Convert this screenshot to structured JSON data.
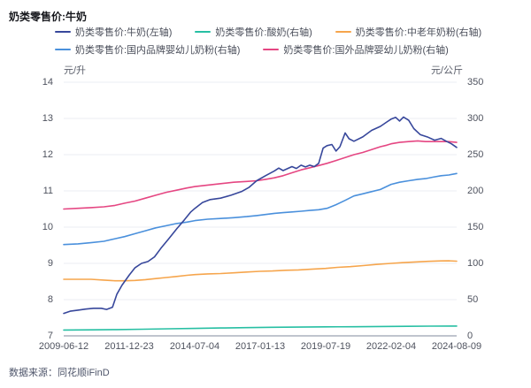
{
  "title": "奶类零售价:牛奶",
  "footer": "数据来源：同花顺iFinD",
  "chart_data": {
    "type": "line",
    "title": "奶类零售价:牛奶",
    "grid": true,
    "legend_position": "top",
    "left_axis": {
      "unit": "元/升",
      "min": 7,
      "max": 14,
      "ticks": [
        14,
        13,
        12,
        11,
        10,
        9,
        8,
        7
      ]
    },
    "right_axis": {
      "unit": "元/公斤",
      "min": 0,
      "max": 350,
      "ticks": [
        350,
        300,
        250,
        200,
        150,
        100,
        50,
        0
      ]
    },
    "x_axis": {
      "tick_labels": [
        "2009-06-12",
        "2011-12-23",
        "2014-07-04",
        "2017-01-13",
        "2019-07-19",
        "2022-02-04",
        "2024-08-09"
      ],
      "min_year": 2009.45,
      "max_year": 2024.6
    },
    "series": [
      {
        "name": "奶类零售价:酸奶(右轴)",
        "axis": "right",
        "color": "#27bfa3",
        "points": [
          [
            2009.45,
            8
          ],
          [
            2010.5,
            8.3
          ],
          [
            2011.5,
            8.7
          ],
          [
            2012.5,
            9.2
          ],
          [
            2013.5,
            9.8
          ],
          [
            2014.51,
            10.3
          ],
          [
            2015.5,
            10.8
          ],
          [
            2016.5,
            11.3
          ],
          [
            2017.5,
            11.8
          ],
          [
            2018.5,
            12.1
          ],
          [
            2019.55,
            12.4
          ],
          [
            2020.64,
            12.6
          ],
          [
            2021.66,
            12.9
          ],
          [
            2022.7,
            13.2
          ],
          [
            2023.6,
            13.4
          ],
          [
            2024.6,
            13.5
          ]
        ]
      },
      {
        "name": "奶类零售价:中老年奶粉(右轴)",
        "axis": "right",
        "color": "#f6a54c",
        "points": [
          [
            2009.45,
            78
          ],
          [
            2010,
            78
          ],
          [
            2010.5,
            78
          ],
          [
            2011,
            77
          ],
          [
            2011.43,
            76
          ],
          [
            2011.8,
            76
          ],
          [
            2012.2,
            76.5
          ],
          [
            2012.6,
            77.5
          ],
          [
            2013,
            79
          ],
          [
            2013.4,
            80.5
          ],
          [
            2013.8,
            82
          ],
          [
            2014.2,
            83.5
          ],
          [
            2014.51,
            84.5
          ],
          [
            2015,
            85.5
          ],
          [
            2015.5,
            86
          ],
          [
            2016,
            87
          ],
          [
            2016.5,
            88
          ],
          [
            2017,
            89
          ],
          [
            2017.5,
            89.5
          ],
          [
            2018,
            90.5
          ],
          [
            2018.5,
            91
          ],
          [
            2019,
            92
          ],
          [
            2019.55,
            93
          ],
          [
            2020,
            94.5
          ],
          [
            2020.5,
            95.5
          ],
          [
            2021,
            97
          ],
          [
            2021.5,
            98.5
          ],
          [
            2022.07,
            100
          ],
          [
            2022.5,
            101
          ],
          [
            2023,
            102
          ],
          [
            2023.5,
            102.8
          ],
          [
            2024,
            103.4
          ],
          [
            2024.3,
            103.5
          ],
          [
            2024.6,
            103
          ]
        ]
      },
      {
        "name": "奶类零售价:国内品牌婴幼儿奶粉(右轴)",
        "axis": "right",
        "color": "#4a90dc",
        "points": [
          [
            2009.45,
            126
          ],
          [
            2010,
            127
          ],
          [
            2010.5,
            128.5
          ],
          [
            2011,
            130.5
          ],
          [
            2011.43,
            134
          ],
          [
            2011.8,
            137
          ],
          [
            2012.2,
            141
          ],
          [
            2012.6,
            145
          ],
          [
            2013,
            149
          ],
          [
            2013.4,
            152
          ],
          [
            2013.8,
            155
          ],
          [
            2014.2,
            157
          ],
          [
            2014.51,
            159
          ],
          [
            2015,
            161
          ],
          [
            2015.5,
            162
          ],
          [
            2016,
            163
          ],
          [
            2016.5,
            164.5
          ],
          [
            2016.89,
            166
          ],
          [
            2017.23,
            167.5
          ],
          [
            2017.57,
            169
          ],
          [
            2017.91,
            170
          ],
          [
            2018.25,
            171
          ],
          [
            2018.6,
            172
          ],
          [
            2018.94,
            173
          ],
          [
            2019.28,
            174
          ],
          [
            2019.6,
            176
          ],
          [
            2019.95,
            181
          ],
          [
            2020.3,
            187
          ],
          [
            2020.64,
            193
          ],
          [
            2020.98,
            196
          ],
          [
            2021.32,
            199
          ],
          [
            2021.66,
            202
          ],
          [
            2022.07,
            209
          ],
          [
            2022.4,
            212
          ],
          [
            2022.75,
            214
          ],
          [
            2023.1,
            216
          ],
          [
            2023.4,
            217
          ],
          [
            2023.7,
            219
          ],
          [
            2024,
            221
          ],
          [
            2024.3,
            222
          ],
          [
            2024.6,
            224
          ]
        ]
      },
      {
        "name": "奶类零售价:国外品牌婴幼儿奶粉(右轴)",
        "axis": "right",
        "color": "#e54682",
        "points": [
          [
            2009.45,
            175
          ],
          [
            2010,
            176
          ],
          [
            2010.5,
            177
          ],
          [
            2011,
            178
          ],
          [
            2011.43,
            180
          ],
          [
            2011.8,
            183
          ],
          [
            2012.2,
            186
          ],
          [
            2012.6,
            190
          ],
          [
            2013,
            194
          ],
          [
            2013.4,
            198
          ],
          [
            2013.8,
            201
          ],
          [
            2014.2,
            204
          ],
          [
            2014.51,
            206
          ],
          [
            2015,
            208
          ],
          [
            2015.5,
            210
          ],
          [
            2016,
            212
          ],
          [
            2016.5,
            213
          ],
          [
            2016.89,
            214
          ],
          [
            2017.23,
            216
          ],
          [
            2017.57,
            218
          ],
          [
            2017.91,
            221
          ],
          [
            2018.25,
            225
          ],
          [
            2018.6,
            229
          ],
          [
            2018.94,
            232
          ],
          [
            2019.28,
            235
          ],
          [
            2019.6,
            238
          ],
          [
            2019.95,
            242
          ],
          [
            2020.3,
            246
          ],
          [
            2020.64,
            250
          ],
          [
            2020.98,
            253
          ],
          [
            2021.32,
            257
          ],
          [
            2021.66,
            261
          ],
          [
            2021.9,
            263
          ],
          [
            2022.07,
            265
          ],
          [
            2022.4,
            267
          ],
          [
            2022.75,
            268
          ],
          [
            2023.1,
            269
          ],
          [
            2023.4,
            268
          ],
          [
            2023.7,
            268
          ],
          [
            2024,
            268
          ],
          [
            2024.3,
            268
          ],
          [
            2024.6,
            267
          ]
        ]
      },
      {
        "name": "奶类零售价:牛奶(左轴)",
        "axis": "left",
        "color": "#37479b",
        "points": [
          [
            2009.45,
            7.62
          ],
          [
            2009.7,
            7.68
          ],
          [
            2010,
            7.71
          ],
          [
            2010.3,
            7.74
          ],
          [
            2010.6,
            7.76
          ],
          [
            2010.9,
            7.76
          ],
          [
            2011.1,
            7.73
          ],
          [
            2011.33,
            7.79
          ],
          [
            2011.5,
            8.15
          ],
          [
            2011.7,
            8.4
          ],
          [
            2011.98,
            8.68
          ],
          [
            2012.2,
            8.88
          ],
          [
            2012.45,
            9.0
          ],
          [
            2012.7,
            9.05
          ],
          [
            2012.95,
            9.18
          ],
          [
            2013.2,
            9.42
          ],
          [
            2013.5,
            9.68
          ],
          [
            2013.8,
            9.95
          ],
          [
            2014.1,
            10.2
          ],
          [
            2014.35,
            10.42
          ],
          [
            2014.51,
            10.52
          ],
          [
            2014.8,
            10.68
          ],
          [
            2015.1,
            10.76
          ],
          [
            2015.5,
            10.8
          ],
          [
            2015.9,
            10.88
          ],
          [
            2016.3,
            10.98
          ],
          [
            2016.6,
            11.1
          ],
          [
            2016.89,
            11.28
          ],
          [
            2017.23,
            11.42
          ],
          [
            2017.57,
            11.55
          ],
          [
            2017.74,
            11.63
          ],
          [
            2017.91,
            11.56
          ],
          [
            2018.25,
            11.67
          ],
          [
            2018.42,
            11.62
          ],
          [
            2018.6,
            11.71
          ],
          [
            2018.77,
            11.66
          ],
          [
            2018.94,
            11.71
          ],
          [
            2019.11,
            11.67
          ],
          [
            2019.28,
            11.76
          ],
          [
            2019.45,
            12.18
          ],
          [
            2019.6,
            12.25
          ],
          [
            2019.79,
            12.28
          ],
          [
            2019.95,
            12.1
          ],
          [
            2020.1,
            12.22
          ],
          [
            2020.3,
            12.6
          ],
          [
            2020.45,
            12.44
          ],
          [
            2020.64,
            12.37
          ],
          [
            2020.98,
            12.49
          ],
          [
            2021.32,
            12.67
          ],
          [
            2021.66,
            12.78
          ],
          [
            2021.9,
            12.9
          ],
          [
            2022.07,
            12.98
          ],
          [
            2022.25,
            13.03
          ],
          [
            2022.4,
            12.93
          ],
          [
            2022.55,
            13.04
          ],
          [
            2022.75,
            12.95
          ],
          [
            2022.95,
            12.72
          ],
          [
            2023.2,
            12.55
          ],
          [
            2023.5,
            12.48
          ],
          [
            2023.75,
            12.4
          ],
          [
            2024,
            12.45
          ],
          [
            2024.2,
            12.37
          ],
          [
            2024.4,
            12.3
          ],
          [
            2024.6,
            12.2
          ]
        ]
      }
    ],
    "legend_order": [
      "奶类零售价:牛奶(左轴)",
      "奶类零售价:酸奶(右轴)",
      "奶类零售价:中老年奶粉(右轴)",
      "奶类零售价:国内品牌婴幼儿奶粉(右轴)",
      "奶类零售价:国外品牌婴幼儿奶粉(右轴)"
    ],
    "style": {
      "grid_color": "#ebedf3",
      "axis_line_color": "#9aa0b0"
    }
  }
}
